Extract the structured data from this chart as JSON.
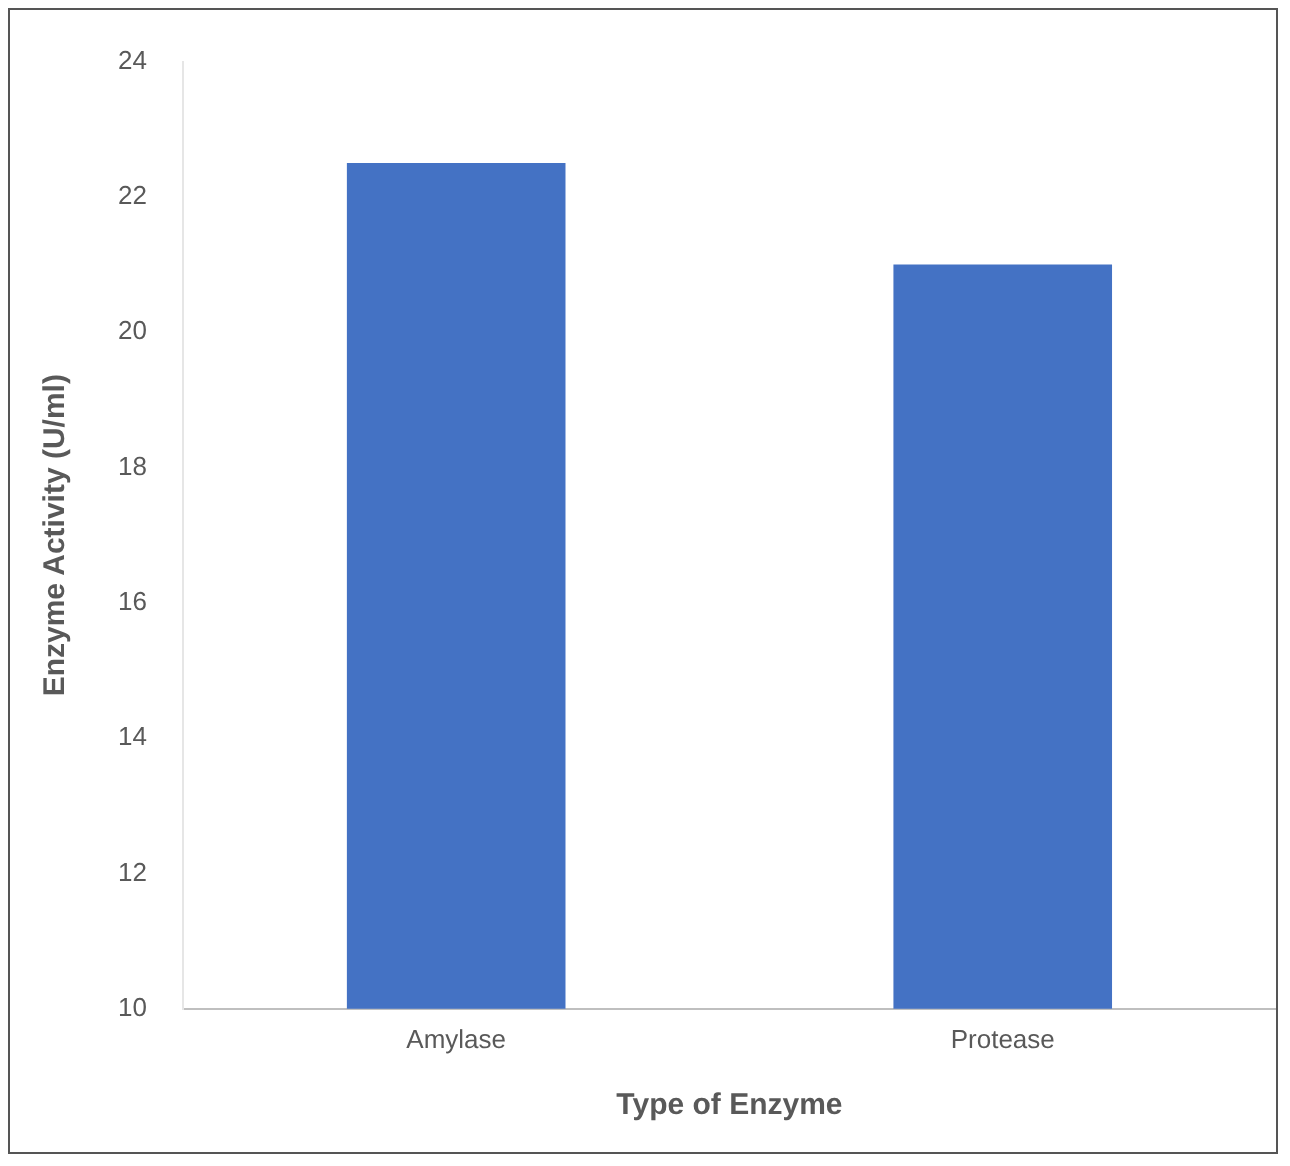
{
  "chart_data": {
    "type": "bar",
    "xlabel": "Type of Enzyme",
    "ylabel": "Enzyme Activity (U/ml)",
    "categories": [
      "Amylase",
      "Protease"
    ],
    "values": [
      22.5,
      21.0
    ],
    "color": "#4472c4",
    "ylim": [
      10,
      24
    ],
    "yticks": [
      10,
      12,
      14,
      16,
      18,
      20,
      22,
      24
    ],
    "grid": false
  }
}
